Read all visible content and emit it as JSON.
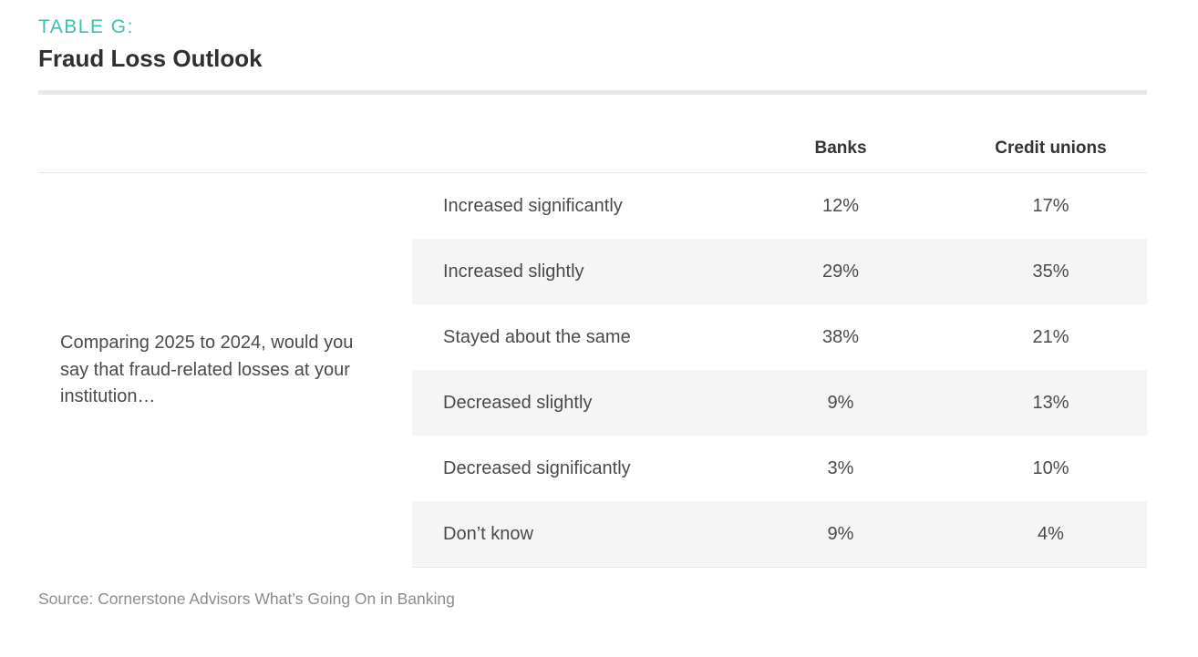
{
  "header": {
    "eyebrow": "TABLE G:",
    "title": "Fraud Loss Outlook"
  },
  "chart_data": {
    "type": "table",
    "question": "Comparing 2025 to 2024, would you say that fraud-related losses at your institution…",
    "columns": [
      "Banks",
      "Credit unions"
    ],
    "rows": [
      {
        "label": "Increased significantly",
        "banks": "12%",
        "credit_unions": "17%"
      },
      {
        "label": "Increased slightly",
        "banks": "29%",
        "credit_unions": "35%"
      },
      {
        "label": "Stayed about the same",
        "banks": "38%",
        "credit_unions": "21%"
      },
      {
        "label": "Decreased slightly",
        "banks": "9%",
        "credit_unions": "13%"
      },
      {
        "label": "Decreased significantly",
        "banks": "3%",
        "credit_unions": "10%"
      },
      {
        "label": "Don’t know",
        "banks": "9%",
        "credit_unions": "4%"
      }
    ],
    "series": [
      {
        "name": "Banks",
        "values": [
          12,
          29,
          38,
          9,
          3,
          9
        ]
      },
      {
        "name": "Credit unions",
        "values": [
          17,
          35,
          21,
          13,
          10,
          4
        ]
      }
    ]
  },
  "footer": {
    "source": "Source: Cornerstone Advisors What’s Going On in Banking"
  },
  "colors": {
    "accent": "#3fbfae",
    "row_shade": "#f5f5f5",
    "rule": "#e8e8e8"
  }
}
